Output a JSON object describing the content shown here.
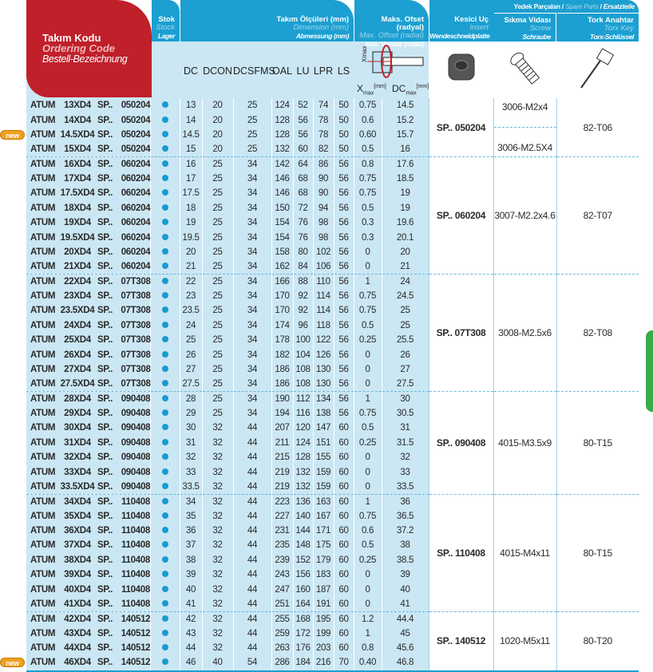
{
  "header": {
    "code": {
      "tr": "Takım Kodu",
      "en": "Ordering Code",
      "de": "Bestell-Bezeichnung"
    },
    "stock": {
      "tr": "Stok",
      "en": "Stock",
      "de": "Lager"
    },
    "dimension": {
      "tr": "Takım Ölçüleri (mm)",
      "en": "Dimension (mm)",
      "de": "Abmessung (mm)"
    },
    "offset": {
      "tr": "Maks. Ofset (radyal)",
      "en": "Max. Offset (radial)",
      "de": "Max. Versatz (radial)"
    },
    "insert": {
      "tr": "Kesici Uç",
      "en": "Insert",
      "de": "Wendeschneidplatte"
    },
    "spare": {
      "tr": "Yedek Parçaları",
      "en": "Spare Parts",
      "de": "Ersatzteile"
    },
    "screw": {
      "tr": "Sıkma Vidası",
      "en": "Screw",
      "de": "Schraube"
    },
    "key": {
      "tr": "Tork Anahtar",
      "en": "Torx Key",
      "de": "Torx-Schlüssel"
    },
    "columns": [
      "DC",
      "DCON",
      "DCSFMS",
      "OAL",
      "LU",
      "LPR",
      "LS"
    ],
    "xmax": "X",
    "xmax_sub": "max",
    "dcmax": "DC",
    "dcmax_sub": "max",
    "unit": "[mm]",
    "diagram_label": "Xmax"
  },
  "new_badge": "new",
  "accent": {
    "red": "#c0202a",
    "blue": "#1c9fd1",
    "light": "#cbe7f4",
    "green": "#3aab4a"
  },
  "groups": [
    {
      "insert": "SP.. 050204",
      "screws": [
        {
          "label": "3006-M2x4",
          "span": 2
        },
        {
          "label": "3006-M2.5X4",
          "span": 2
        }
      ],
      "key": "82-T06",
      "rows": [
        [
          "ATUM",
          "13XD4",
          "SP..",
          "050204",
          "13",
          "20",
          "25",
          "124",
          "52",
          "74",
          "50",
          "0.75",
          "14.5",
          false
        ],
        [
          "ATUM",
          "14XD4",
          "SP..",
          "050204",
          "14",
          "20",
          "25",
          "128",
          "56",
          "78",
          "50",
          "0.6",
          "15.2",
          false
        ],
        [
          "ATUM",
          "14.5XD4",
          "SP..",
          "050204",
          "14.5",
          "20",
          "25",
          "128",
          "56",
          "78",
          "50",
          "0.60",
          "15.7",
          true
        ],
        [
          "ATUM",
          "15XD4",
          "SP..",
          "050204",
          "15",
          "20",
          "25",
          "132",
          "60",
          "82",
          "50",
          "0.5",
          "16",
          false
        ]
      ]
    },
    {
      "insert": "SP.. 060204",
      "screws": [
        {
          "label": "3007-M2.2x4.6",
          "span": 8
        }
      ],
      "key": "82-T07",
      "rows": [
        [
          "ATUM",
          "16XD4",
          "SP..",
          "060204",
          "16",
          "25",
          "34",
          "142",
          "64",
          "86",
          "56",
          "0.8",
          "17.6",
          false
        ],
        [
          "ATUM",
          "17XD4",
          "SP..",
          "060204",
          "17",
          "25",
          "34",
          "146",
          "68",
          "90",
          "56",
          "0.75",
          "18.5",
          false
        ],
        [
          "ATUM",
          "17.5XD4",
          "SP..",
          "060204",
          "17.5",
          "25",
          "34",
          "146",
          "68",
          "90",
          "56",
          "0.75",
          "19",
          false
        ],
        [
          "ATUM",
          "18XD4",
          "SP..",
          "060204",
          "18",
          "25",
          "34",
          "150",
          "72",
          "94",
          "56",
          "0.5",
          "19",
          false
        ],
        [
          "ATUM",
          "19XD4",
          "SP..",
          "060204",
          "19",
          "25",
          "34",
          "154",
          "76",
          "98",
          "56",
          "0.3",
          "19.6",
          false
        ],
        [
          "ATUM",
          "19.5XD4",
          "SP..",
          "060204",
          "19.5",
          "25",
          "34",
          "154",
          "76",
          "98",
          "56",
          "0.3",
          "20.1",
          false
        ],
        [
          "ATUM",
          "20XD4",
          "SP..",
          "060204",
          "20",
          "25",
          "34",
          "158",
          "80",
          "102",
          "56",
          "0",
          "20",
          false
        ],
        [
          "ATUM",
          "21XD4",
          "SP..",
          "060204",
          "21",
          "25",
          "34",
          "162",
          "84",
          "106",
          "56",
          "0",
          "21",
          false
        ]
      ]
    },
    {
      "insert": "SP.. 07T308",
      "screws": [
        {
          "label": "3008-M2.5x6",
          "span": 8
        }
      ],
      "key": "82-T08",
      "rows": [
        [
          "ATUM",
          "22XD4",
          "SP..",
          "07T308",
          "22",
          "25",
          "34",
          "166",
          "88",
          "110",
          "56",
          "1",
          "24",
          false
        ],
        [
          "ATUM",
          "23XD4",
          "SP..",
          "07T308",
          "23",
          "25",
          "34",
          "170",
          "92",
          "114",
          "56",
          "0.75",
          "24.5",
          false
        ],
        [
          "ATUM",
          "23.5XD4",
          "SP..",
          "07T308",
          "23.5",
          "25",
          "34",
          "170",
          "92",
          "114",
          "56",
          "0.75",
          "25",
          false
        ],
        [
          "ATUM",
          "24XD4",
          "SP..",
          "07T308",
          "24",
          "25",
          "34",
          "174",
          "96",
          "118",
          "56",
          "0.5",
          "25",
          false
        ],
        [
          "ATUM",
          "25XD4",
          "SP..",
          "07T308",
          "25",
          "25",
          "34",
          "178",
          "100",
          "122",
          "56",
          "0.25",
          "25.5",
          false
        ],
        [
          "ATUM",
          "26XD4",
          "SP..",
          "07T308",
          "26",
          "25",
          "34",
          "182",
          "104",
          "126",
          "56",
          "0",
          "26",
          false
        ],
        [
          "ATUM",
          "27XD4",
          "SP..",
          "07T308",
          "27",
          "25",
          "34",
          "186",
          "108",
          "130",
          "56",
          "0",
          "27",
          false
        ],
        [
          "ATUM",
          "27.5XD4",
          "SP..",
          "07T308",
          "27.5",
          "25",
          "34",
          "186",
          "108",
          "130",
          "56",
          "0",
          "27.5",
          false
        ]
      ]
    },
    {
      "insert": "SP.. 090408",
      "screws": [
        {
          "label": "4015-M3.5x9",
          "span": 7
        }
      ],
      "key": "80-T15",
      "rows": [
        [
          "ATUM",
          "28XD4",
          "SP..",
          "090408",
          "28",
          "25",
          "34",
          "190",
          "112",
          "134",
          "56",
          "1",
          "30",
          false
        ],
        [
          "ATUM",
          "29XD4",
          "SP..",
          "090408",
          "29",
          "25",
          "34",
          "194",
          "116",
          "138",
          "56",
          "0.75",
          "30.5",
          false
        ],
        [
          "ATUM",
          "30XD4",
          "SP..",
          "090408",
          "30",
          "32",
          "44",
          "207",
          "120",
          "147",
          "60",
          "0.5",
          "31",
          false
        ],
        [
          "ATUM",
          "31XD4",
          "SP..",
          "090408",
          "31",
          "32",
          "44",
          "211",
          "124",
          "151",
          "60",
          "0.25",
          "31.5",
          false
        ],
        [
          "ATUM",
          "32XD4",
          "SP..",
          "090408",
          "32",
          "32",
          "44",
          "215",
          "128",
          "155",
          "60",
          "0",
          "32",
          false
        ],
        [
          "ATUM",
          "33XD4",
          "SP..",
          "090408",
          "33",
          "32",
          "44",
          "219",
          "132",
          "159",
          "60",
          "0",
          "33",
          false
        ],
        [
          "ATUM",
          "33.5XD4",
          "SP..",
          "090408",
          "33.5",
          "32",
          "44",
          "219",
          "132",
          "159",
          "60",
          "0",
          "33.5",
          false
        ]
      ]
    },
    {
      "insert": "SP.. 110408",
      "screws": [
        {
          "label": "4015-M4x11",
          "span": 8
        }
      ],
      "key": "80-T15",
      "rows": [
        [
          "ATUM",
          "34XD4",
          "SP..",
          "110408",
          "34",
          "32",
          "44",
          "223",
          "136",
          "163",
          "60",
          "1",
          "36",
          false
        ],
        [
          "ATUM",
          "35XD4",
          "SP..",
          "110408",
          "35",
          "32",
          "44",
          "227",
          "140",
          "167",
          "60",
          "0.75",
          "36.5",
          false
        ],
        [
          "ATUM",
          "36XD4",
          "SP..",
          "110408",
          "36",
          "32",
          "44",
          "231",
          "144",
          "171",
          "60",
          "0.6",
          "37.2",
          false
        ],
        [
          "ATUM",
          "37XD4",
          "SP..",
          "110408",
          "37",
          "32",
          "44",
          "235",
          "148",
          "175",
          "60",
          "0.5",
          "38",
          false
        ],
        [
          "ATUM",
          "38XD4",
          "SP..",
          "110408",
          "38",
          "32",
          "44",
          "239",
          "152",
          "179",
          "60",
          "0.25",
          "38.5",
          false
        ],
        [
          "ATUM",
          "39XD4",
          "SP..",
          "110408",
          "39",
          "32",
          "44",
          "243",
          "156",
          "183",
          "60",
          "0",
          "39",
          false
        ],
        [
          "ATUM",
          "40XD4",
          "SP..",
          "110408",
          "40",
          "32",
          "44",
          "247",
          "160",
          "187",
          "60",
          "0",
          "40",
          false
        ],
        [
          "ATUM",
          "41XD4",
          "SP..",
          "110408",
          "41",
          "32",
          "44",
          "251",
          "164",
          "191",
          "60",
          "0",
          "41",
          false
        ]
      ]
    },
    {
      "insert": "SP.. 140512",
      "screws": [
        {
          "label": "1020-M5x11",
          "span": 4
        }
      ],
      "key": "80-T20",
      "rows": [
        [
          "ATUM",
          "42XD4",
          "SP..",
          "140512",
          "42",
          "32",
          "44",
          "255",
          "168",
          "195",
          "60",
          "1.2",
          "44.4",
          false
        ],
        [
          "ATUM",
          "43XD4",
          "SP..",
          "140512",
          "43",
          "32",
          "44",
          "259",
          "172",
          "199",
          "60",
          "1",
          "45",
          false
        ],
        [
          "ATUM",
          "44XD4",
          "SP..",
          "140512",
          "44",
          "32",
          "44",
          "263",
          "176",
          "203",
          "60",
          "0.8",
          "45.6",
          false
        ],
        [
          "ATUM",
          "46XD4",
          "SP..",
          "140512",
          "46",
          "40",
          "54",
          "286",
          "184",
          "216",
          "70",
          "0.40",
          "46.8",
          true
        ]
      ]
    }
  ]
}
